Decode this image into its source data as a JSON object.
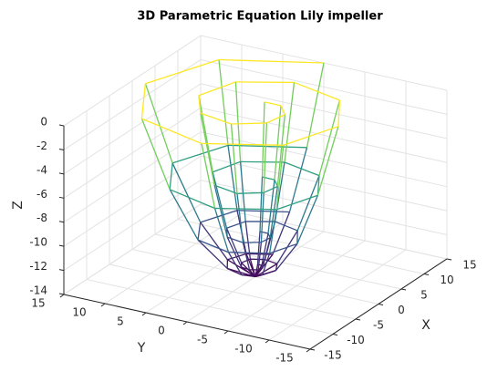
{
  "chart_data": {
    "type": "mesh3d",
    "title": "3D Parametric Equation Lily impeller",
    "xlabel": "X",
    "ylabel": "Y",
    "zlabel": "Z",
    "xlim": [
      -15,
      15
    ],
    "ylim": [
      -15,
      15
    ],
    "zlim": [
      -14,
      0
    ],
    "xticks": [
      -15,
      -10,
      -5,
      0,
      5,
      10,
      15
    ],
    "yticks": [
      -15,
      -10,
      -5,
      0,
      5,
      10,
      15
    ],
    "zticks": [
      -14,
      -12,
      -10,
      -8,
      -6,
      -4,
      -2,
      0
    ],
    "grid": true,
    "colormap": "viridis",
    "surface": {
      "x": [
        [
          0,
          0,
          0,
          0,
          0,
          0,
          0,
          0,
          0,
          0,
          0,
          0,
          0,
          0,
          0,
          0,
          0
        ],
        [
          3.8,
          2.5,
          0,
          -2.2,
          -3,
          -1.9,
          0,
          1.7,
          2.1,
          1.4,
          0,
          -1.1,
          -1.3,
          -0.8,
          0,
          0.5,
          0.5
        ],
        [
          7.5,
          5,
          0,
          -4.5,
          -5.9,
          -3.9,
          0,
          3.3,
          4.3,
          2.7,
          0,
          -2.2,
          -2.7,
          -1.6,
          0,
          1,
          1
        ],
        [
          11.3,
          7.5,
          0,
          -6.7,
          -8.9,
          -5.8,
          0,
          5,
          6.4,
          4.1,
          0,
          -3.2,
          -4,
          -2.3,
          0,
          1.5,
          1.5
        ],
        [
          15,
          10,
          0,
          -8.9,
          -11.8,
          -7.7,
          0,
          6.6,
          8.5,
          5.4,
          0,
          -4.3,
          -5.3,
          -3.1,
          0,
          2,
          2
        ]
      ],
      "y": [
        [
          0,
          0,
          0,
          0,
          0,
          0,
          0,
          0,
          0,
          0,
          0,
          0,
          0,
          0,
          0,
          0,
          0
        ],
        [
          0,
          2.5,
          3.4,
          2.2,
          0,
          -1.9,
          -2.5,
          -1.7,
          0,
          1.4,
          1.7,
          1.1,
          0,
          -0.8,
          -0.9,
          -0.5,
          0
        ],
        [
          0,
          5,
          6.7,
          4.5,
          0,
          -3.9,
          -5.1,
          -3.3,
          0,
          2.7,
          3.5,
          2.2,
          0,
          -1.6,
          -1.8,
          -1,
          0
        ],
        [
          0,
          7.5,
          10.1,
          6.7,
          0,
          -5.8,
          -7.6,
          -5,
          0,
          4.1,
          5.2,
          3.2,
          0,
          -2.3,
          -2.7,
          -1.5,
          0
        ],
        [
          0,
          10,
          13.4,
          8.9,
          0,
          -7.7,
          -10.1,
          -6.6,
          0,
          5.4,
          6.9,
          4.3,
          0,
          -3.1,
          -3.6,
          -2,
          0
        ]
      ],
      "z": [
        [
          -14,
          -14,
          -14,
          -14,
          -14,
          -14,
          -14,
          -14,
          -14,
          -14,
          -14,
          -14,
          -14,
          -14,
          -14,
          -14,
          -14
        ],
        [
          -13.1,
          -13.1,
          -13.1,
          -13.1,
          -13.1,
          -13.1,
          -13.1,
          -13.1,
          -13.1,
          -13.1,
          -13.1,
          -13.1,
          -13.1,
          -13.1,
          -13.1,
          -13.1,
          -13.1
        ],
        [
          -10.5,
          -10.5,
          -10.5,
          -10.5,
          -10.5,
          -10.5,
          -10.5,
          -10.5,
          -10.5,
          -10.5,
          -10.5,
          -10.5,
          -10.5,
          -10.5,
          -10.5,
          -10.5,
          -10.5
        ],
        [
          -6.1,
          -6.1,
          -6.1,
          -6.1,
          -6.1,
          -6.1,
          -6.1,
          -6.1,
          -6.1,
          -6.1,
          -6.1,
          -6.1,
          -6.1,
          -6.1,
          -6.1,
          -6.1,
          -6.1
        ],
        [
          0,
          0,
          0,
          0,
          0,
          0,
          0,
          0,
          0,
          0,
          0,
          0,
          0,
          0,
          0,
          0,
          0
        ]
      ]
    }
  }
}
